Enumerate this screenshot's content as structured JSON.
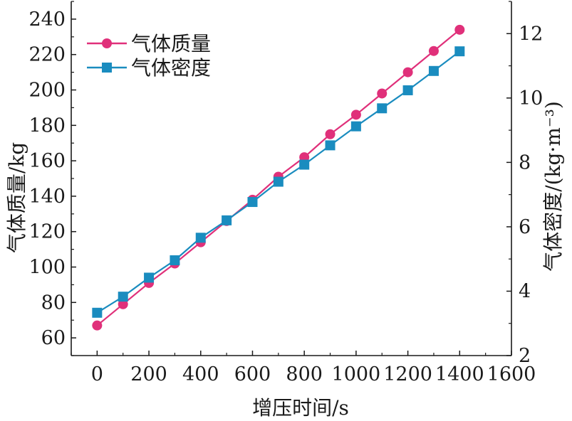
{
  "chart_data": {
    "type": "line",
    "x": [
      0,
      100,
      200,
      300,
      400,
      500,
      600,
      700,
      800,
      900,
      1000,
      1100,
      1200,
      1300,
      1400
    ],
    "xlabel": "增压时间/s",
    "xlim": [
      -100,
      1600
    ],
    "xticks": [
      0,
      200,
      400,
      600,
      800,
      1000,
      1200,
      1400,
      1600
    ],
    "ylabel_left": "气体质量/kg",
    "ylim_left": [
      50,
      250
    ],
    "yticks_left": [
      60,
      80,
      100,
      120,
      140,
      160,
      180,
      200,
      220,
      240
    ],
    "ylabel_right": "气体密度/(kg·m⁻³)",
    "ylim_right": [
      2,
      13
    ],
    "yticks_right": [
      2,
      4,
      6,
      8,
      10,
      12
    ],
    "legend_position": "top-left",
    "grid": false,
    "series": [
      {
        "name": "气体质量",
        "axis": "left",
        "marker": "circle",
        "color": "#e0307a",
        "values": [
          67,
          79,
          91,
          102,
          114,
          126,
          138,
          151,
          162,
          175,
          186,
          198,
          210,
          222,
          234
        ]
      },
      {
        "name": "气体密度",
        "axis": "right",
        "marker": "square",
        "color": "#1a8cbf",
        "values": [
          3.33,
          3.83,
          4.42,
          4.96,
          5.66,
          6.2,
          6.77,
          7.4,
          7.93,
          8.53,
          9.12,
          9.68,
          10.24,
          10.84,
          11.45
        ]
      }
    ]
  }
}
